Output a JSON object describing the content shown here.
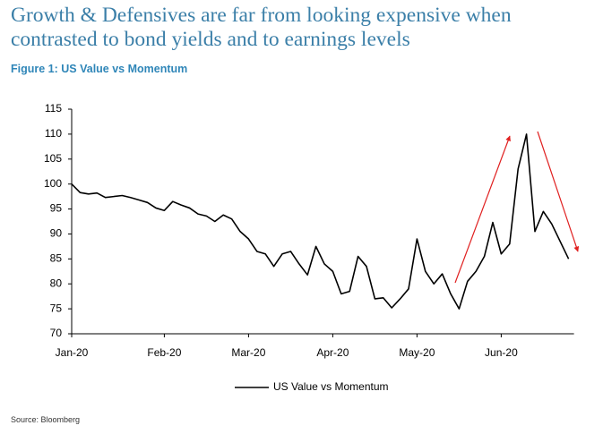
{
  "chart_data": {
    "type": "line",
    "title": [
      "Growth & Defensives are far from looking expensive when",
      "contrasted to bond yields and to earnings levels"
    ],
    "subtitle": "Figure 1: US Value vs Momentum",
    "source": "Source: Bloomberg",
    "categories": [
      "Jan-20",
      null,
      null,
      null,
      null,
      null,
      null,
      null,
      null,
      null,
      null,
      "Feb-20",
      null,
      null,
      null,
      null,
      null,
      null,
      null,
      null,
      null,
      "Mar-20",
      null,
      null,
      null,
      null,
      null,
      null,
      null,
      null,
      null,
      "Apr-20",
      null,
      null,
      null,
      null,
      null,
      null,
      null,
      null,
      null,
      "May-20",
      null,
      null,
      null,
      null,
      null,
      null,
      null,
      null,
      null,
      "Jun-20",
      null,
      null,
      null,
      null,
      null,
      null,
      null,
      null
    ],
    "series": [
      {
        "name": "US Value vs Momentum",
        "color": "#000000",
        "values": [
          100,
          98.3,
          98,
          98.2,
          97.3,
          97.5,
          97.7,
          97.3,
          96.8,
          96.3,
          95.2,
          94.7,
          96.5,
          95.8,
          95.2,
          94,
          93.6,
          92.5,
          93.8,
          93,
          90.5,
          89,
          86.5,
          86,
          83.5,
          86,
          86.5,
          84,
          81.8,
          87.5,
          84,
          82.5,
          78,
          78.5,
          85.5,
          83.5,
          77,
          77.2,
          75.2,
          77,
          79,
          89,
          82.5,
          80,
          82,
          78,
          75,
          80.5,
          82.5,
          85.5,
          92.3,
          86,
          88,
          103,
          110,
          90.5,
          94.5,
          92,
          88.5,
          85
        ]
      }
    ],
    "ylim": [
      70,
      115
    ],
    "yticks": [
      70,
      75,
      80,
      85,
      90,
      95,
      100,
      105,
      110,
      115
    ],
    "legend": "bottom"
  }
}
